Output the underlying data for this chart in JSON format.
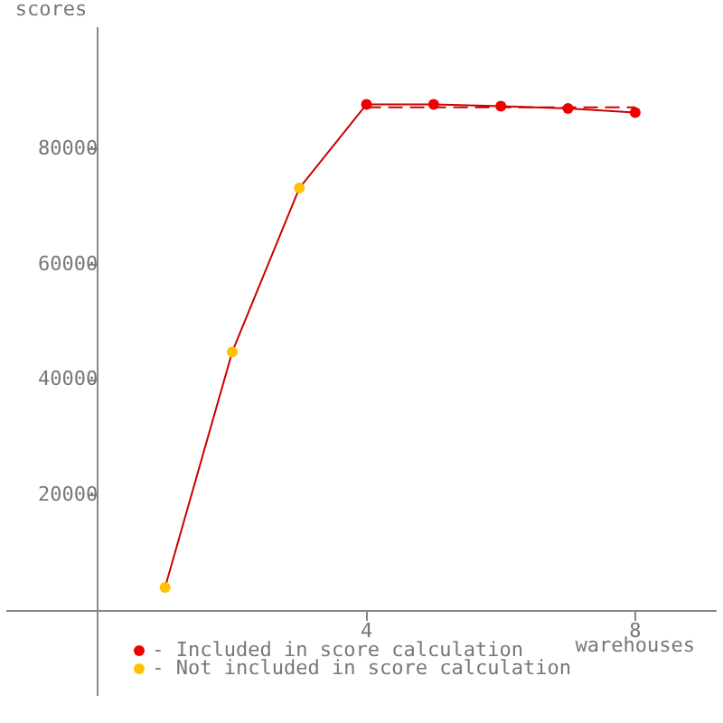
{
  "chart_data": {
    "type": "line",
    "xlabel": "warehouses",
    "ylabel": "scores",
    "xlim": [
      -1.35,
      9.2
    ],
    "ylim": [
      -14500,
      101000
    ],
    "xticks": [
      4,
      8
    ],
    "yticks": [
      20000,
      40000,
      60000,
      80000
    ],
    "grid": false,
    "legend": "bottom left",
    "series": [
      {
        "color": "#cc0000",
        "x": [
          1,
          2,
          3,
          4,
          5,
          6,
          7,
          8
        ],
        "values": [
          4100,
          44900,
          73300,
          87800,
          87800,
          87500,
          87100,
          86400
        ],
        "marker": "none"
      },
      {
        "color": "#cc0000",
        "x": [
          4,
          8
        ],
        "values": [
          87300,
          87300
        ],
        "marker": "none",
        "line_style": "dashed"
      },
      {
        "type": "scatter",
        "name": "- Included in score calculation",
        "color": "#ee0000",
        "x": [
          4,
          5,
          6,
          7,
          8
        ],
        "values": [
          87800,
          87800,
          87500,
          87100,
          86400
        ],
        "marker": "circle"
      },
      {
        "type": "scatter",
        "name": "- Not included in score calculation",
        "color": "#ffc000",
        "x": [
          1,
          2,
          3
        ],
        "values": [
          4100,
          44900,
          73300
        ],
        "marker": "circle"
      }
    ]
  }
}
